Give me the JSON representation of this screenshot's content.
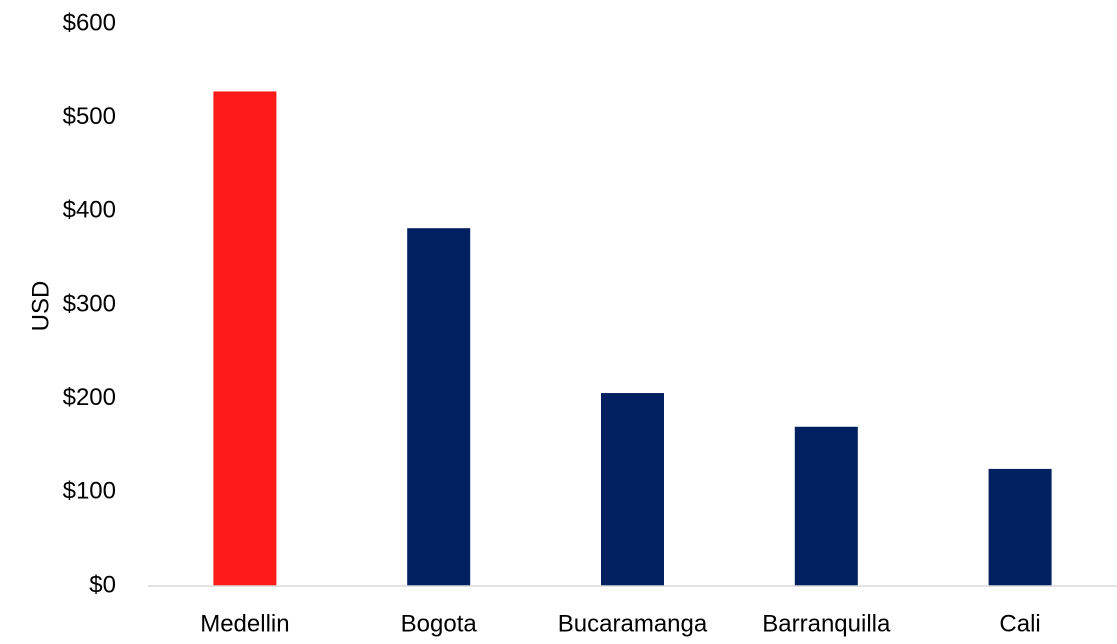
{
  "chart_data": {
    "type": "bar",
    "title": "",
    "xlabel": "",
    "ylabel": "USD",
    "categories": [
      "Medellin",
      "Bogota",
      "Bucaramanga",
      "Barranquilla",
      "Cali"
    ],
    "values": [
      528,
      382,
      206,
      170,
      125
    ],
    "colors": [
      "#ff1a1a",
      "#012060",
      "#012060",
      "#012060",
      "#012060"
    ],
    "ylim": [
      0,
      600
    ],
    "yticks": [
      0,
      100,
      200,
      300,
      400,
      500,
      600
    ],
    "ytick_labels": [
      "$0",
      "$100",
      "$200",
      "$300",
      "$400",
      "$500",
      "$600"
    ],
    "grid": false,
    "legend": "none"
  }
}
